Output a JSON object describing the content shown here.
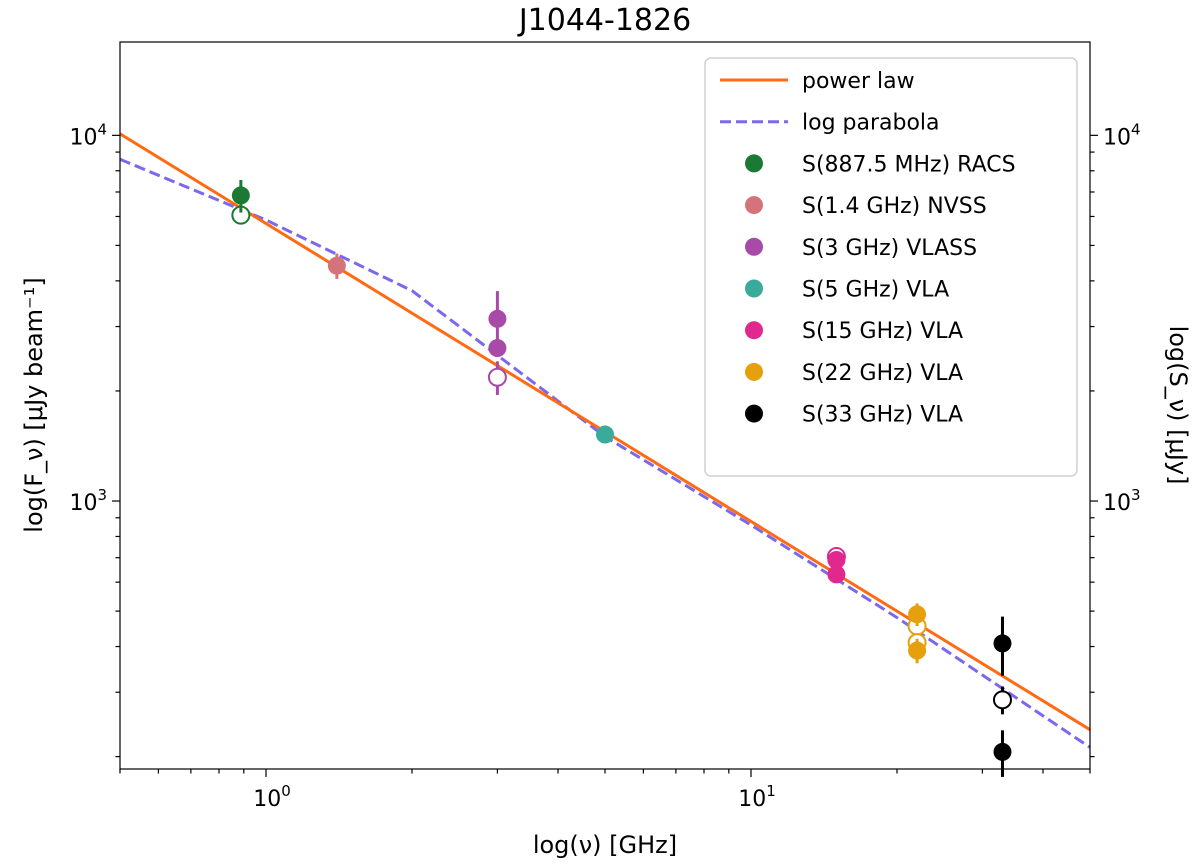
{
  "chart_data": {
    "type": "scatter",
    "title": "J1044-1826",
    "xlabel": "log(ν) [GHz]",
    "ylabel_left": "log(F_ν) [μJy beam⁻¹]",
    "ylabel_right": "log(S_ν) [μJy]",
    "xscale": "log",
    "yscale": "log",
    "xlim": [
      0.5,
      50
    ],
    "ylim": [
      185,
      18000
    ],
    "x_major_ticks": [
      {
        "value": 1,
        "base": "10",
        "exp": "0"
      },
      {
        "value": 10,
        "base": "10",
        "exp": "1"
      }
    ],
    "y_major_ticks": [
      {
        "value": 1000,
        "base": "10",
        "exp": "3"
      },
      {
        "value": 10000,
        "base": "10",
        "exp": "4"
      }
    ],
    "legend_position": "top-right",
    "lines": [
      {
        "name": "power law",
        "color": "#ff6a13",
        "style": "solid",
        "points": [
          [
            0.5,
            10100
          ],
          [
            50,
            237
          ]
        ]
      },
      {
        "name": "log parabola",
        "color": "#7b68ee",
        "style": "dashed",
        "points": [
          [
            0.5,
            8600
          ],
          [
            1,
            5870
          ],
          [
            2,
            3760
          ],
          [
            5,
            1500
          ],
          [
            10,
            860
          ],
          [
            20,
            480
          ],
          [
            50,
            212
          ]
        ]
      }
    ],
    "series": [
      {
        "name": "S(887.5 MHz) RACS",
        "color": "#1a7a34",
        "points": [
          {
            "x": 0.8875,
            "y": 6850,
            "yerr": 700
          }
        ],
        "open_points": [
          {
            "x": 0.8875,
            "y": 6050
          }
        ]
      },
      {
        "name": "S(1.4 GHz) NVSS",
        "color": "#d4737a",
        "points": [
          {
            "x": 1.4,
            "y": 4400,
            "yerr": 350
          }
        ],
        "open_points": []
      },
      {
        "name": "S(3 GHz) VLASS",
        "color": "#a84aa8",
        "points": [
          {
            "x": 3.0,
            "y": 3150,
            "yerr": 600
          },
          {
            "x": 3.0,
            "y": 2620,
            "yerr": 0
          }
        ],
        "open_points": [
          {
            "x": 3.0,
            "y": 2180,
            "yerr": 230
          }
        ]
      },
      {
        "name": "S(5 GHz) VLA",
        "color": "#3aab9b",
        "points": [
          {
            "x": 5.0,
            "y": 1520,
            "yerr": 0
          }
        ],
        "open_points": []
      },
      {
        "name": "S(15 GHz) VLA",
        "color": "#e0288e",
        "points": [
          {
            "x": 15.0,
            "y": 690,
            "yerr": 30
          },
          {
            "x": 15.0,
            "y": 630,
            "yerr": 0
          }
        ],
        "open_points": [
          {
            "x": 15.0,
            "y": 705
          }
        ]
      },
      {
        "name": "S(22 GHz) VLA",
        "color": "#e6a00c",
        "points": [
          {
            "x": 22.0,
            "y": 490,
            "yerr": 35
          },
          {
            "x": 22.0,
            "y": 390,
            "yerr": 30
          }
        ],
        "open_points": [
          {
            "x": 22.0,
            "y": 455
          },
          {
            "x": 22.0,
            "y": 410
          }
        ]
      },
      {
        "name": "S(33 GHz) VLA",
        "color": "#000000",
        "points": [
          {
            "x": 33.0,
            "y": 408,
            "yerr": 75
          },
          {
            "x": 33.0,
            "y": 206,
            "yerr": 30
          }
        ],
        "open_points": [
          {
            "x": 33.0,
            "y": 286,
            "yerr": 25
          }
        ]
      }
    ]
  }
}
